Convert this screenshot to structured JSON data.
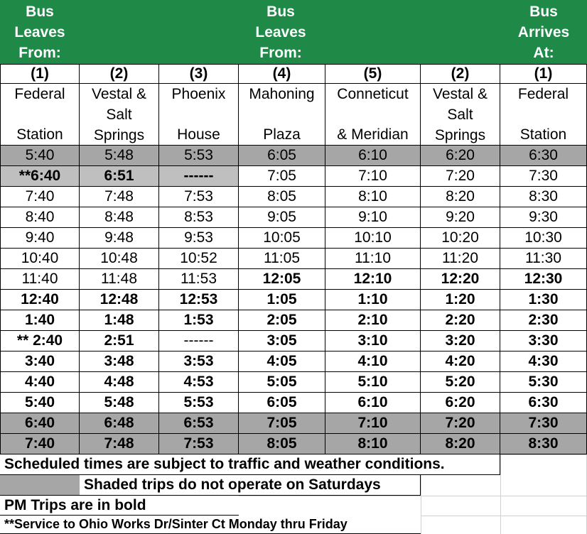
{
  "header": {
    "left": [
      "Bus",
      "Leaves",
      "From:"
    ],
    "middle": [
      "Bus",
      "Leaves",
      "From:"
    ],
    "right": [
      "Bus",
      "Arrives",
      "At:"
    ]
  },
  "stops": [
    {
      "num": "(1)",
      "line1": "Federal",
      "line2": "",
      "line3": "Station"
    },
    {
      "num": "(2)",
      "line1": "Vestal &",
      "line2": "Salt",
      "line3": "Springs"
    },
    {
      "num": "(3)",
      "line1": "Phoenix",
      "line2": "",
      "line3": "House"
    },
    {
      "num": "(4)",
      "line1": "Mahoning",
      "line2": "",
      "line3": "Plaza"
    },
    {
      "num": "(5)",
      "line1": "Conneticut",
      "line2": "",
      "line3": "& Meridian"
    },
    {
      "num": "(2)",
      "line1": "Vestal &",
      "line2": "Salt",
      "line3": "Springs"
    },
    {
      "num": "(1)",
      "line1": "Federal",
      "line2": "",
      "line3": "Station"
    }
  ],
  "rows": [
    {
      "cells": [
        "5:40",
        "5:48",
        "5:53",
        "6:05",
        "6:10",
        "6:20",
        "6:30"
      ],
      "shade": "full",
      "bold": [
        false,
        false,
        false,
        false,
        false,
        false,
        false
      ]
    },
    {
      "cells": [
        "**6:40",
        "6:51",
        "------",
        "7:05",
        "7:10",
        "7:20",
        "7:30"
      ],
      "shade": "partial",
      "bold": [
        true,
        true,
        true,
        false,
        false,
        false,
        false
      ]
    },
    {
      "cells": [
        "7:40",
        "7:48",
        "7:53",
        "8:05",
        "8:10",
        "8:20",
        "8:30"
      ],
      "shade": "none",
      "bold": [
        false,
        false,
        false,
        false,
        false,
        false,
        false
      ]
    },
    {
      "cells": [
        "8:40",
        "8:48",
        "8:53",
        "9:05",
        "9:10",
        "9:20",
        "9:30"
      ],
      "shade": "none",
      "bold": [
        false,
        false,
        false,
        false,
        false,
        false,
        false
      ]
    },
    {
      "cells": [
        "9:40",
        "9:48",
        "9:53",
        "10:05",
        "10:10",
        "10:20",
        "10:30"
      ],
      "shade": "none",
      "bold": [
        false,
        false,
        false,
        false,
        false,
        false,
        false
      ]
    },
    {
      "cells": [
        "10:40",
        "10:48",
        "10:52",
        "11:05",
        "11:10",
        "11:20",
        "11:30"
      ],
      "shade": "none",
      "bold": [
        false,
        false,
        false,
        false,
        false,
        false,
        false
      ]
    },
    {
      "cells": [
        "11:40",
        "11:48",
        "11:53",
        "12:05",
        "12:10",
        "12:20",
        "12:30"
      ],
      "shade": "none",
      "bold": [
        false,
        false,
        false,
        true,
        true,
        true,
        true
      ]
    },
    {
      "cells": [
        "12:40",
        "12:48",
        "12:53",
        "1:05",
        "1:10",
        "1:20",
        "1:30"
      ],
      "shade": "none",
      "bold": [
        true,
        true,
        true,
        true,
        true,
        true,
        true
      ]
    },
    {
      "cells": [
        "1:40",
        "1:48",
        "1:53",
        "2:05",
        "2:10",
        "2:20",
        "2:30"
      ],
      "shade": "none",
      "bold": [
        true,
        true,
        true,
        true,
        true,
        true,
        true
      ]
    },
    {
      "cells": [
        "** 2:40",
        "2:51",
        "------",
        "3:05",
        "3:10",
        "3:20",
        "3:30"
      ],
      "shade": "none",
      "bold": [
        true,
        true,
        false,
        true,
        true,
        true,
        true
      ]
    },
    {
      "cells": [
        "3:40",
        "3:48",
        "3:53",
        "4:05",
        "4:10",
        "4:20",
        "4:30"
      ],
      "shade": "none",
      "bold": [
        true,
        true,
        true,
        true,
        true,
        true,
        true
      ]
    },
    {
      "cells": [
        "4:40",
        "4:48",
        "4:53",
        "5:05",
        "5:10",
        "5:20",
        "5:30"
      ],
      "shade": "none",
      "bold": [
        true,
        true,
        true,
        true,
        true,
        true,
        true
      ]
    },
    {
      "cells": [
        "5:40",
        "5:48",
        "5:53",
        "6:05",
        "6:10",
        "6:20",
        "6:30"
      ],
      "shade": "none",
      "bold": [
        true,
        true,
        true,
        true,
        true,
        true,
        true
      ]
    },
    {
      "cells": [
        "6:40",
        "6:48",
        "6:53",
        "7:05",
        "7:10",
        "7:20",
        "7:30"
      ],
      "shade": "full",
      "bold": [
        true,
        true,
        true,
        true,
        true,
        true,
        true
      ]
    },
    {
      "cells": [
        "7:40",
        "7:48",
        "7:53",
        "8:05",
        "8:10",
        "8:20",
        "8:30"
      ],
      "shade": "full",
      "bold": [
        true,
        true,
        true,
        true,
        true,
        true,
        true
      ]
    }
  ],
  "notes": {
    "traffic": "Scheduled times are subject to traffic and weather conditions.",
    "shaded": "Shaded trips do not operate on Saturdays",
    "pm": "PM Trips are in bold",
    "service": "**Service to Ohio Works Dr/Sinter Ct Monday thru Friday"
  },
  "colors": {
    "header_green": "#1f8a48",
    "shade": "#a6a6a6",
    "shade_light": "#bfbfbf"
  }
}
